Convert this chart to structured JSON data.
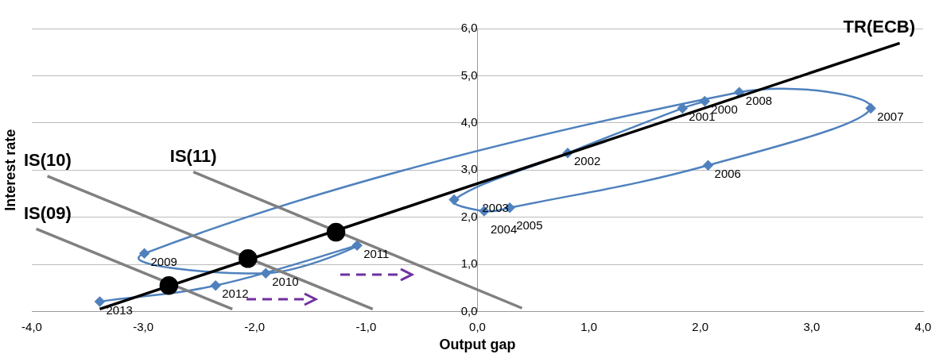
{
  "chart_data": {
    "type": "line",
    "xlabel": "Output gap",
    "ylabel": "Interest rate",
    "xlim": [
      -4,
      4
    ],
    "ylim": [
      0,
      6
    ],
    "xticks": [
      {
        "value": -4,
        "label": "-4,0"
      },
      {
        "value": -3,
        "label": "-3,0"
      },
      {
        "value": -2,
        "label": "-2,0"
      },
      {
        "value": -1,
        "label": "-1,0"
      },
      {
        "value": 0,
        "label": "0,0"
      },
      {
        "value": 1,
        "label": "1,0"
      },
      {
        "value": 2,
        "label": "2,0"
      },
      {
        "value": 3,
        "label": "3,0"
      },
      {
        "value": 4,
        "label": "4,0"
      }
    ],
    "yticks": [
      {
        "value": 0,
        "label": "0,0"
      },
      {
        "value": 1,
        "label": "1,0"
      },
      {
        "value": 2,
        "label": "2,0"
      },
      {
        "value": 3,
        "label": "3,0"
      },
      {
        "value": 4,
        "label": "4,0"
      },
      {
        "value": 5,
        "label": "5,0"
      },
      {
        "value": 6,
        "label": "6,0"
      }
    ],
    "grid": "y",
    "series": [
      {
        "type": "line",
        "name": "IS(09)",
        "color": "#808080",
        "marker": "none",
        "x": [
          -3.96,
          -2.2
        ],
        "values": [
          1.75,
          0.05
        ]
      },
      {
        "type": "line",
        "name": "IS(10)",
        "color": "#808080",
        "marker": "none",
        "x": [
          -3.86,
          -0.94
        ],
        "values": [
          2.87,
          0.05
        ]
      },
      {
        "type": "line",
        "name": "IS(11)",
        "color": "#808080",
        "marker": "none",
        "x": [
          -2.55,
          0.4
        ],
        "values": [
          2.96,
          0.07
        ]
      },
      {
        "type": "line",
        "name": "TR(ECB)",
        "color": "#000000",
        "marker": "none",
        "x": [
          -3.39,
          3.79
        ],
        "values": [
          0.05,
          5.69
        ]
      },
      {
        "type": "line",
        "color": "#4f81bd",
        "marker": "diamond",
        "x": [
          2.04,
          1.84,
          0.81,
          -0.21,
          0.06,
          0.29,
          2.07,
          3.53,
          2.35,
          -2.99,
          -1.9,
          -1.08,
          -2.35,
          -3.39
        ],
        "values": [
          4.46,
          4.31,
          3.36,
          2.37,
          2.13,
          2.2,
          3.1,
          4.31,
          4.65,
          1.23,
          0.81,
          1.4,
          0.55,
          0.21
        ]
      },
      {
        "type": "scatter",
        "color": "#000000",
        "marker": "circle",
        "x": [
          -2.77,
          -2.06,
          -1.27
        ],
        "values": [
          0.55,
          1.12,
          1.68
        ]
      }
    ],
    "annotations": [
      {
        "text": "2000",
        "x": 2.04,
        "y": 4.46
      },
      {
        "text": "2001",
        "x": 1.84,
        "y": 4.31
      },
      {
        "text": "2002",
        "x": 0.81,
        "y": 3.36
      },
      {
        "text": "2003",
        "x": -0.21,
        "y": 2.37
      },
      {
        "text": "2004",
        "x": 0.06,
        "y": 2.13
      },
      {
        "text": "2005",
        "x": 0.29,
        "y": 2.2
      },
      {
        "text": "2006",
        "x": 2.07,
        "y": 3.1
      },
      {
        "text": "2007",
        "x": 3.53,
        "y": 4.31
      },
      {
        "text": "2008",
        "x": 2.35,
        "y": 4.65
      },
      {
        "text": "2009",
        "x": -2.99,
        "y": 1.23
      },
      {
        "text": "2010",
        "x": -1.9,
        "y": 0.81
      },
      {
        "text": "2011",
        "x": -1.08,
        "y": 1.4
      },
      {
        "text": "2012",
        "x": -2.35,
        "y": 0.55
      },
      {
        "text": "2013",
        "x": -3.39,
        "y": 0.21
      }
    ]
  }
}
